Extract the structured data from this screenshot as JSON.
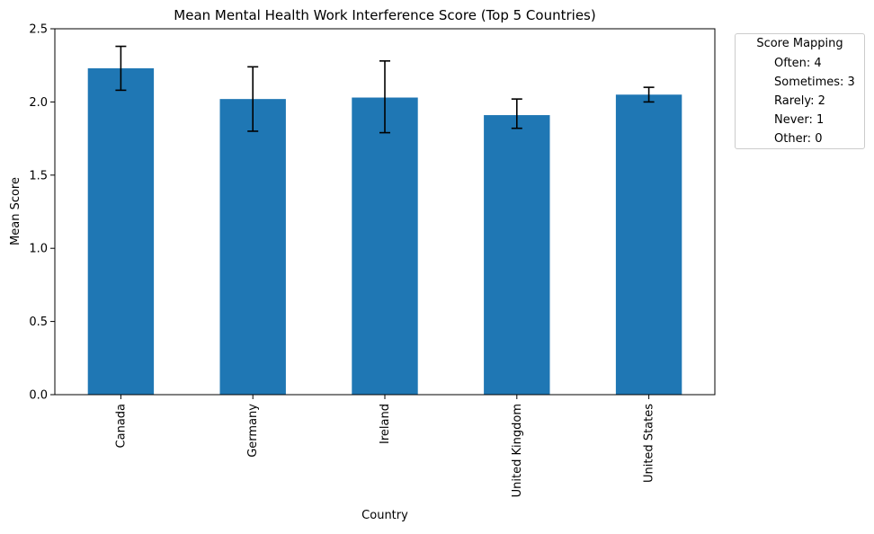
{
  "chart_data": {
    "type": "bar",
    "title": "Mean Mental Health Work Interference Score (Top 5 Countries)",
    "xlabel": "Country",
    "ylabel": "Mean Score",
    "categories": [
      "Canada",
      "Germany",
      "Ireland",
      "United Kingdom",
      "United States"
    ],
    "values": [
      2.23,
      2.02,
      2.03,
      1.91,
      2.05
    ],
    "error_low": [
      2.08,
      1.8,
      1.79,
      1.82,
      2.0
    ],
    "error_high": [
      2.38,
      2.24,
      2.28,
      2.02,
      2.1
    ],
    "ylim": [
      0,
      2.5
    ],
    "yticks": [
      "0.0",
      "0.5",
      "1.0",
      "1.5",
      "2.0",
      "2.5"
    ],
    "bar_color": "#1f77b4",
    "grid": false,
    "legend": {
      "placement": "outside-top-right",
      "title": "Score Mapping",
      "entries": [
        "Often: 4",
        "Sometimes: 3",
        "Rarely: 2",
        "Never: 1",
        "Other: 0"
      ]
    }
  }
}
